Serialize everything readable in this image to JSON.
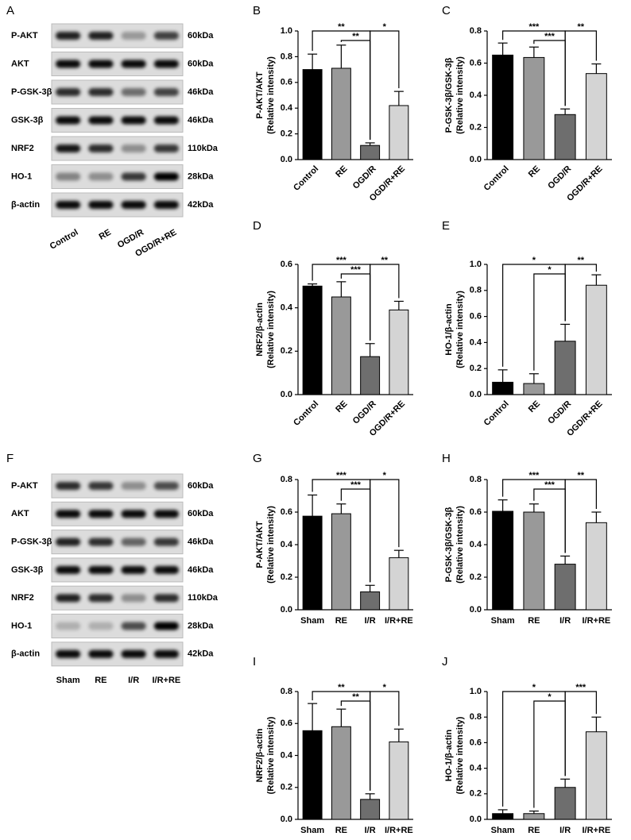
{
  "blots": [
    {
      "panel": "A",
      "rows": [
        {
          "protein": "P-AKT",
          "size": "60kDa"
        },
        {
          "protein": "AKT",
          "size": "60kDa"
        },
        {
          "protein": "P-GSK-3β",
          "size": "46kDa"
        },
        {
          "protein": "GSK-3β",
          "size": "46kDa"
        },
        {
          "protein": "NRF2",
          "size": "110kDa"
        },
        {
          "protein": "HO-1",
          "size": "28kDa"
        },
        {
          "protein": "β-actin",
          "size": "42kDa"
        }
      ],
      "lanes": [
        "Control",
        "RE",
        "OGD/R",
        "OGD/R+RE"
      ]
    },
    {
      "panel": "F",
      "rows": [
        {
          "protein": "P-AKT",
          "size": "60kDa"
        },
        {
          "protein": "AKT",
          "size": "60kDa"
        },
        {
          "protein": "P-GSK-3β",
          "size": "46kDa"
        },
        {
          "protein": "GSK-3β",
          "size": "46kDa"
        },
        {
          "protein": "NRF2",
          "size": "110kDa"
        },
        {
          "protein": "HO-1",
          "size": "28kDa"
        },
        {
          "protein": "β-actin",
          "size": "42kDa"
        }
      ],
      "lanes": [
        "Sham",
        "RE",
        "I/R",
        "I/R+RE"
      ]
    }
  ],
  "chart_data": [
    {
      "type": "bar",
      "panel": "B",
      "ylabel": [
        "P-AKT/AKT",
        "(Relative intensity)"
      ],
      "categories": [
        "Control",
        "RE",
        "OGD/R",
        "OGD/R+RE"
      ],
      "values": [
        0.7,
        0.71,
        0.11,
        0.42
      ],
      "errors": [
        0.12,
        0.18,
        0.02,
        0.11
      ],
      "colors": [
        "#000000",
        "#999999",
        "#6e6e6e",
        "#d4d4d4"
      ],
      "ylim": [
        0,
        1
      ],
      "yticks": [
        {
          "value": 0,
          "label": "0.0"
        },
        0.2,
        0.4,
        0.6,
        0.8,
        {
          "value": 1,
          "label": "1.0"
        }
      ],
      "significance": [
        {
          "label": "**",
          "between": [
            "Control",
            "OGD/R"
          ]
        },
        {
          "label": "**",
          "between": [
            "RE",
            "OGD/R"
          ]
        },
        {
          "label": "*",
          "between": [
            "OGD/R",
            "OGD/R+RE"
          ]
        }
      ]
    },
    {
      "type": "bar",
      "panel": "C",
      "ylabel": [
        "P-GSK-3β/GSK-3β",
        "(Relative intensity)"
      ],
      "categories": [
        "Control",
        "RE",
        "OGD/R",
        "OGD/R+RE"
      ],
      "values": [
        0.65,
        0.635,
        0.28,
        0.535
      ],
      "errors": [
        0.075,
        0.065,
        0.035,
        0.06
      ],
      "colors": [
        "#000000",
        "#999999",
        "#6e6e6e",
        "#d4d4d4"
      ],
      "ylim": [
        0,
        0.8
      ],
      "yticks": [
        {
          "value": 0,
          "label": "0.0"
        },
        0.2,
        0.4,
        0.6,
        0.8
      ],
      "significance": [
        {
          "label": "***",
          "between": [
            "Control",
            "OGD/R"
          ]
        },
        {
          "label": "***",
          "between": [
            "RE",
            "OGD/R"
          ]
        },
        {
          "label": "**",
          "between": [
            "OGD/R",
            "OGD/R+RE"
          ]
        }
      ]
    },
    {
      "type": "bar",
      "panel": "D",
      "ylabel": [
        "NRF2/β-actin",
        "(Relative intensity)"
      ],
      "categories": [
        "Control",
        "RE",
        "OGD/R",
        "OGD/R+RE"
      ],
      "values": [
        0.5,
        0.45,
        0.175,
        0.39
      ],
      "errors": [
        0.01,
        0.07,
        0.06,
        0.04
      ],
      "colors": [
        "#000000",
        "#999999",
        "#6e6e6e",
        "#d4d4d4"
      ],
      "ylim": [
        0,
        0.6
      ],
      "yticks": [
        {
          "value": 0,
          "label": "0.0"
        },
        0.2,
        0.4,
        0.6
      ],
      "significance": [
        {
          "label": "***",
          "between": [
            "Control",
            "OGD/R"
          ]
        },
        {
          "label": "***",
          "between": [
            "RE",
            "OGD/R"
          ]
        },
        {
          "label": "**",
          "between": [
            "OGD/R",
            "OGD/R+RE"
          ]
        }
      ]
    },
    {
      "type": "bar",
      "panel": "E",
      "ylabel": [
        "HO-1/β-actin",
        "(Relative intensity)"
      ],
      "categories": [
        "Control",
        "RE",
        "OGD/R",
        "OGD/R+RE"
      ],
      "values": [
        0.095,
        0.085,
        0.41,
        0.84
      ],
      "errors": [
        0.095,
        0.075,
        0.13,
        0.08
      ],
      "colors": [
        "#000000",
        "#999999",
        "#6e6e6e",
        "#d4d4d4"
      ],
      "ylim": [
        0,
        1
      ],
      "yticks": [
        {
          "value": 0,
          "label": "0.0"
        },
        0.2,
        0.4,
        0.6,
        0.8,
        {
          "value": 1,
          "label": "1.0"
        }
      ],
      "significance": [
        {
          "label": "*",
          "between": [
            "Control",
            "OGD/R"
          ]
        },
        {
          "label": "*",
          "between": [
            "RE",
            "OGD/R"
          ]
        },
        {
          "label": "**",
          "between": [
            "OGD/R",
            "OGD/R+RE"
          ]
        }
      ]
    },
    {
      "type": "bar",
      "panel": "G",
      "ylabel": [
        "P-AKT/AKT",
        "(Relative intensity)"
      ],
      "categories": [
        "Sham",
        "RE",
        "I/R",
        "I/R+RE"
      ],
      "values": [
        0.575,
        0.59,
        0.11,
        0.32
      ],
      "errors": [
        0.13,
        0.06,
        0.04,
        0.045
      ],
      "colors": [
        "#000000",
        "#999999",
        "#6e6e6e",
        "#d4d4d4"
      ],
      "ylim": [
        0,
        0.8
      ],
      "yticks": [
        {
          "value": 0,
          "label": "0.0"
        },
        0.2,
        0.4,
        0.6,
        0.8
      ],
      "significance": [
        {
          "label": "***",
          "between": [
            "Sham",
            "I/R"
          ]
        },
        {
          "label": "***",
          "between": [
            "RE",
            "I/R"
          ]
        },
        {
          "label": "*",
          "between": [
            "I/R",
            "I/R+RE"
          ]
        }
      ]
    },
    {
      "type": "bar",
      "panel": "H",
      "ylabel": [
        "P-GSK-3β/GSK-3β",
        "(Relative intensity)"
      ],
      "categories": [
        "Sham",
        "RE",
        "I/R",
        "I/R+RE"
      ],
      "values": [
        0.605,
        0.6,
        0.28,
        0.535
      ],
      "errors": [
        0.07,
        0.05,
        0.05,
        0.065
      ],
      "colors": [
        "#000000",
        "#999999",
        "#6e6e6e",
        "#d4d4d4"
      ],
      "ylim": [
        0,
        0.8
      ],
      "yticks": [
        {
          "value": 0,
          "label": "0.0"
        },
        0.2,
        0.4,
        0.6,
        0.8
      ],
      "significance": [
        {
          "label": "***",
          "between": [
            "Sham",
            "I/R"
          ]
        },
        {
          "label": "***",
          "between": [
            "RE",
            "I/R"
          ]
        },
        {
          "label": "**",
          "between": [
            "I/R",
            "I/R+RE"
          ]
        }
      ]
    },
    {
      "type": "bar",
      "panel": "I",
      "ylabel": [
        "NRF2/β-actin",
        "(Relative intensity)"
      ],
      "categories": [
        "Sham",
        "RE",
        "I/R",
        "I/R+RE"
      ],
      "values": [
        0.555,
        0.58,
        0.125,
        0.485
      ],
      "errors": [
        0.17,
        0.11,
        0.035,
        0.08
      ],
      "colors": [
        "#000000",
        "#999999",
        "#6e6e6e",
        "#d4d4d4"
      ],
      "ylim": [
        0,
        0.8
      ],
      "yticks": [
        {
          "value": 0,
          "label": "0.0"
        },
        0.2,
        0.4,
        0.6,
        0.8
      ],
      "significance": [
        {
          "label": "**",
          "between": [
            "Sham",
            "I/R"
          ]
        },
        {
          "label": "**",
          "between": [
            "RE",
            "I/R"
          ]
        },
        {
          "label": "*",
          "between": [
            "I/R",
            "I/R+RE"
          ]
        }
      ]
    },
    {
      "type": "bar",
      "panel": "J",
      "ylabel": [
        "HO-1/β-actin",
        "(Relative intensity)"
      ],
      "categories": [
        "Sham",
        "RE",
        "I/R",
        "I/R+RE"
      ],
      "values": [
        0.045,
        0.045,
        0.25,
        0.685
      ],
      "errors": [
        0.03,
        0.02,
        0.065,
        0.115
      ],
      "colors": [
        "#000000",
        "#999999",
        "#6e6e6e",
        "#d4d4d4"
      ],
      "ylim": [
        0,
        1
      ],
      "yticks": [
        {
          "value": 0,
          "label": "0.0"
        },
        0.2,
        0.4,
        0.6,
        0.8,
        {
          "value": 1,
          "label": "1.0"
        }
      ],
      "significance": [
        {
          "label": "*",
          "between": [
            "Sham",
            "I/R"
          ]
        },
        {
          "label": "*",
          "between": [
            "RE",
            "I/R"
          ]
        },
        {
          "label": "***",
          "between": [
            "I/R",
            "I/R+RE"
          ]
        }
      ]
    }
  ]
}
